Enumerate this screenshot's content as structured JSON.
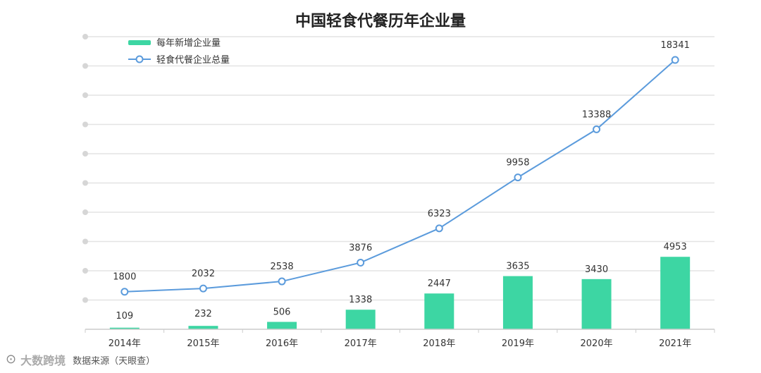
{
  "chart_data": {
    "type": "bar",
    "title": "中国轻食代餐历年企业量",
    "categories": [
      "2014年",
      "2015年",
      "2016年",
      "2017年",
      "2018年",
      "2019年",
      "2020年",
      "2021年"
    ],
    "series": [
      {
        "name": "每年新增企业量",
        "type": "bar",
        "color": "#3dd6a3",
        "values": [
          109,
          232,
          506,
          1338,
          2447,
          3635,
          3430,
          4953
        ]
      },
      {
        "name": "轻食代餐企业总量",
        "type": "line",
        "color": "#5b9bdc",
        "values": [
          1800,
          2032,
          2538,
          3876,
          6323,
          9958,
          13388,
          18341
        ]
      }
    ],
    "ylim": [
      0,
      20000
    ],
    "grid": true,
    "legend": "top-left",
    "source": "数据来源（天眼查）"
  },
  "footer": {
    "brand": "大数跨境",
    "logo_icon": "brand-logo-icon"
  }
}
